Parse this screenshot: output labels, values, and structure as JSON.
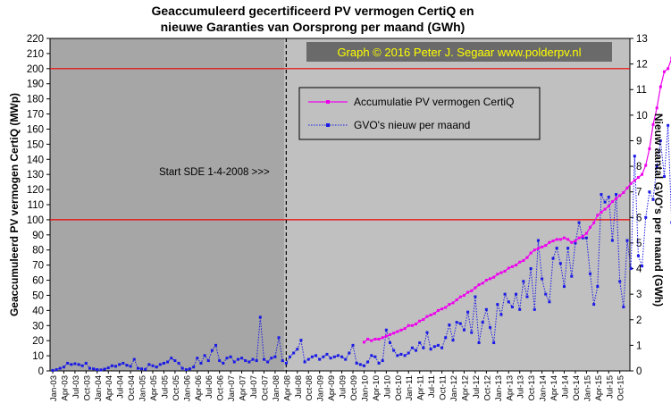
{
  "chart_data": {
    "type": "line",
    "title_line1": "Geaccumuleerd  gecertificeerd  PV  vermogen  CertiQ  en",
    "title_line2": "nieuwe  Garanties  van Oorsprong  per maand  (GWh)",
    "watermark": "Graph  © 2016  Peter  J.  Segaar   www.polderpv.nl",
    "annotation": "Start SDE 1-4-2008  >>>",
    "ylabel_left": "Geaccumuleerd PV vermogen CertiQ (MWp)",
    "ylabel_right": "Nieuw aantal GVO's per maand (GWh)",
    "ylim_left": [
      0,
      220
    ],
    "ylim_right": [
      0,
      13
    ],
    "yticks_left": [
      "0",
      "10",
      "20",
      "30",
      "40",
      "50",
      "60",
      "70",
      "80",
      "90",
      "100",
      "110",
      "120",
      "130",
      "140",
      "150",
      "160",
      "170",
      "180",
      "190",
      "200",
      "210",
      "220"
    ],
    "yticks_right": [
      "0",
      "1",
      "2",
      "3",
      "4",
      "5",
      "6",
      "7",
      "8",
      "9",
      "10",
      "11",
      "12",
      "13"
    ],
    "xticks": [
      "Jan-03",
      "Apr-03",
      "Jul-03",
      "Oct-03",
      "Jan-04",
      "Apr-04",
      "Jul-04",
      "Oct-04",
      "Jan-05",
      "Apr-05",
      "Jul-05",
      "Oct-05",
      "Jan-06",
      "Apr-06",
      "Jul-06",
      "Oct-06",
      "Jan-07",
      "Apr-07",
      "Jul-07",
      "Oct-07",
      "Jan-08",
      "Apr-08",
      "Jul-08",
      "Oct-08",
      "Jan-09",
      "Apr-09",
      "Jul-09",
      "Oct-09",
      "Jan-10",
      "Apr-10",
      "Jul-10",
      "Oct-10",
      "Jan-11",
      "Apr-11",
      "Jul-11",
      "Oct-11",
      "Jan-12",
      "Apr-12",
      "Jul-12",
      "Oct-12",
      "Jan-13",
      "Apr-13",
      "Jul-13",
      "Oct-13",
      "Jan-14",
      "Apr-14",
      "Jul-14",
      "Oct-14",
      "Jan-15",
      "Apr-15",
      "Jul-15",
      "Oct-15"
    ],
    "ref_lines_left": [
      100,
      200
    ],
    "sde_start_month_index": 63,
    "grid": false,
    "legend_position": "top-center",
    "series": [
      {
        "name": "Accumulatie PV vermogen CertiQ",
        "axis": "left",
        "color": "#ee00ee",
        "start_month_index": 84,
        "values": [
          19,
          21,
          20,
          21,
          21,
          22,
          23,
          24,
          25,
          26,
          27,
          28,
          30,
          30,
          31,
          33,
          34,
          36,
          37,
          38,
          40,
          41,
          42,
          44,
          45,
          47,
          49,
          50,
          52,
          53,
          55,
          57,
          58,
          60,
          61,
          62,
          64,
          65,
          66,
          68,
          69,
          70,
          72,
          73,
          75,
          78,
          80,
          81,
          82,
          83,
          85,
          86,
          87,
          87,
          88,
          87,
          85,
          86,
          88,
          89,
          91,
          95,
          98,
          103,
          105,
          107,
          109,
          112,
          114,
          116,
          118,
          121,
          124,
          126,
          128,
          130,
          136,
          147,
          163,
          174,
          188,
          198,
          200,
          207
        ]
      },
      {
        "name": "GVO's nieuw per maand",
        "axis": "right",
        "color": "#1a1ae6",
        "values": [
          0.02,
          0.05,
          0.1,
          0.15,
          0.3,
          0.25,
          0.28,
          0.25,
          0.2,
          0.3,
          0.1,
          0.08,
          0.05,
          0.04,
          0.07,
          0.12,
          0.2,
          0.18,
          0.25,
          0.3,
          0.22,
          0.18,
          0.45,
          0.1,
          0.08,
          0.06,
          0.25,
          0.2,
          0.15,
          0.25,
          0.3,
          0.35,
          0.5,
          0.4,
          0.3,
          0.1,
          0.05,
          0.08,
          0.15,
          0.5,
          0.3,
          0.6,
          0.4,
          0.8,
          1.0,
          0.4,
          0.3,
          0.5,
          0.55,
          0.35,
          0.45,
          0.5,
          0.4,
          0.35,
          0.45,
          0.4,
          2.1,
          0.45,
          0.35,
          0.5,
          0.55,
          1.3,
          0.4,
          0.3,
          0.55,
          0.7,
          0.85,
          1.2,
          0.35,
          0.45,
          0.55,
          0.6,
          0.45,
          0.55,
          0.65,
          0.5,
          0.55,
          0.6,
          0.55,
          0.45,
          0.7,
          1.0,
          0.3,
          0.25,
          0.2,
          0.35,
          0.6,
          0.55,
          0.3,
          0.4,
          1.6,
          1.1,
          0.8,
          0.6,
          0.65,
          0.6,
          0.7,
          0.9,
          0.8,
          1.1,
          0.9,
          1.5,
          0.85,
          0.95,
          1.0,
          0.9,
          1.3,
          1.8,
          1.2,
          1.9,
          1.85,
          1.6,
          2.3,
          1.5,
          2.9,
          1.1,
          1.9,
          2.4,
          1.7,
          1.1,
          2.6,
          2.2,
          3.0,
          2.7,
          2.5,
          3.0,
          2.4,
          3.5,
          2.9,
          4.0,
          2.4,
          5.1,
          3.6,
          3.0,
          2.7,
          4.4,
          4.8,
          4.2,
          3.3,
          4.8,
          3.7,
          5.0,
          5.8,
          5.2,
          5.2,
          3.8,
          2.6,
          3.3,
          6.9,
          6.6,
          6.8,
          5.1,
          6.9,
          3.5,
          2.5,
          5.1,
          4.0,
          8.4,
          4.5,
          4.1,
          6.0,
          7.0,
          6.7,
          8.0,
          9.0,
          7.6,
          9.6,
          5.8,
          7.7,
          4.3,
          6.3,
          5.0,
          9.1,
          10.7,
          11.3,
          11.6,
          11.8,
          8.4,
          5.6
        ]
      }
    ]
  }
}
